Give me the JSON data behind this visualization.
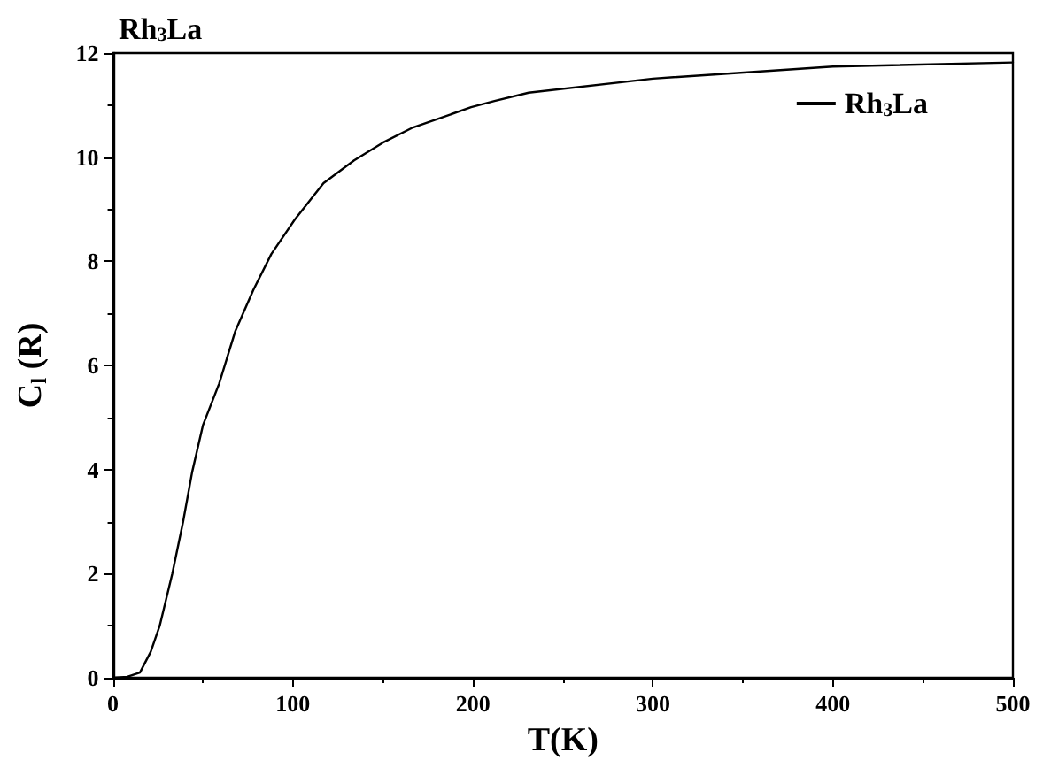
{
  "chart_data": {
    "type": "line",
    "title": "Rh$_{3}$La",
    "xlabel": "T(K)",
    "ylabel": "C$_{l}$ (R)",
    "xlim": [
      0,
      500
    ],
    "xticks": [
      0,
      100,
      200,
      300,
      400,
      500
    ],
    "ylim": [
      0,
      12
    ],
    "yticks": [
      0,
      2,
      4,
      6,
      8,
      10,
      12
    ],
    "grid": false,
    "legend": "top right",
    "marker": "none",
    "line_style": "solid",
    "series": [
      {
        "name": "Rh$_{3}$La",
        "color": "#000000",
        "x": [
          0,
          8,
          15,
          21,
          26,
          33,
          39,
          44,
          50,
          59,
          68,
          78,
          88,
          101,
          117,
          134,
          150,
          166,
          199,
          212,
          231,
          300,
          400,
          500
        ],
        "values": [
          0,
          0.02,
          0.1,
          0.5,
          1.0,
          2.0,
          3.0,
          3.95,
          4.85,
          5.65,
          6.66,
          7.45,
          8.14,
          8.8,
          9.5,
          9.94,
          10.28,
          10.56,
          10.96,
          11.08,
          11.24,
          11.51,
          11.74,
          11.82
        ]
      }
    ]
  }
}
